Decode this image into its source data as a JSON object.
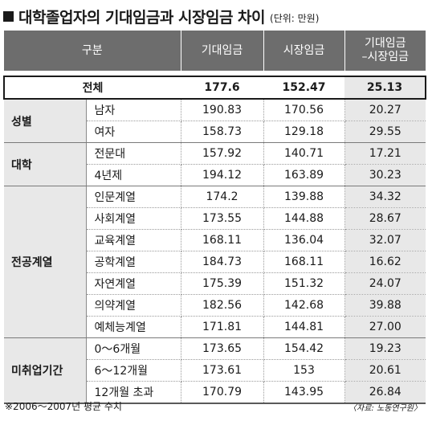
{
  "title": "대학졸업자의 기대임금과 시장임금 차이",
  "unit": "(단위: 만원)",
  "headers": {
    "category": "구분",
    "expected": "기대임금",
    "market": "시장임금",
    "diff_line1": "기대임금",
    "diff_line2": "–시장임금"
  },
  "total": {
    "label": "전체",
    "expected": "177.6",
    "market": "152.47",
    "diff": "25.13"
  },
  "groups": [
    {
      "name": "성별",
      "rows": [
        {
          "label": "남자",
          "expected": "190.83",
          "market": "170.56",
          "diff": "20.27"
        },
        {
          "label": "여자",
          "expected": "158.73",
          "market": "129.18",
          "diff": "29.55"
        }
      ]
    },
    {
      "name": "대학",
      "rows": [
        {
          "label": "전문대",
          "expected": "157.92",
          "market": "140.71",
          "diff": "17.21"
        },
        {
          "label": "4년제",
          "expected": "194.12",
          "market": "163.89",
          "diff": "30.23"
        }
      ]
    },
    {
      "name": "전공계열",
      "rows": [
        {
          "label": "인문계열",
          "expected": "174.2",
          "market": "139.88",
          "diff": "34.32"
        },
        {
          "label": "사회계열",
          "expected": "173.55",
          "market": "144.88",
          "diff": "28.67"
        },
        {
          "label": "교육계열",
          "expected": "168.11",
          "market": "136.04",
          "diff": "32.07"
        },
        {
          "label": "공학계열",
          "expected": "184.73",
          "market": "168.11",
          "diff": "16.62"
        },
        {
          "label": "자연계열",
          "expected": "175.39",
          "market": "151.32",
          "diff": "24.07"
        },
        {
          "label": "의약계열",
          "expected": "182.56",
          "market": "142.68",
          "diff": "39.88"
        },
        {
          "label": "예체능계열",
          "expected": "171.81",
          "market": "144.81",
          "diff": "27.00"
        }
      ]
    },
    {
      "name": "미취업기간",
      "rows": [
        {
          "label": "0～6개월",
          "expected": "173.65",
          "market": "154.42",
          "diff": "19.23"
        },
        {
          "label": "6～12개월",
          "expected": "173.61",
          "market": "153",
          "diff": "20.61"
        },
        {
          "label": "12개월 초과",
          "expected": "170.79",
          "market": "143.95",
          "diff": "26.84"
        }
      ]
    }
  ],
  "footnote": "※2006～2007년 평균 수치",
  "source": "〈자료: 노동연구원〉"
}
